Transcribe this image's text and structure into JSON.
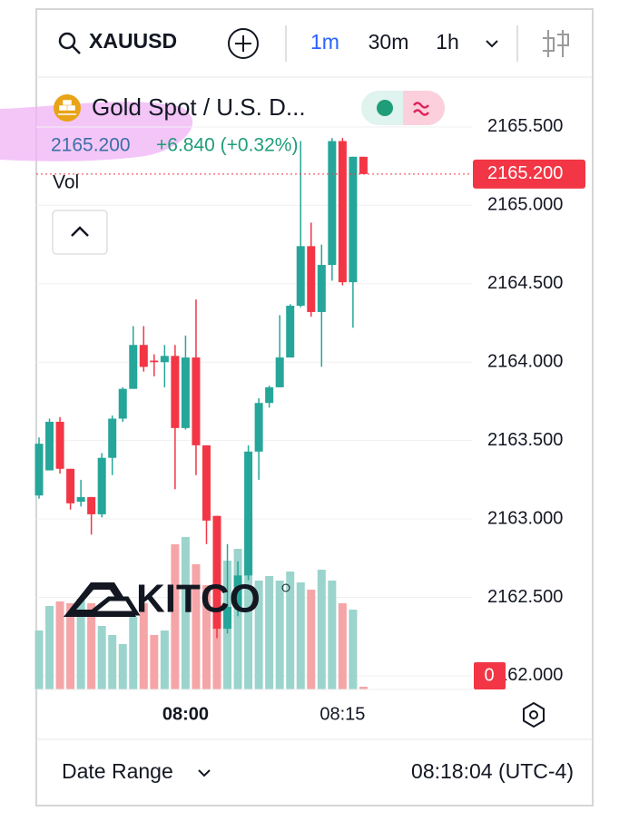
{
  "toolbar": {
    "symbol": "XAUUSD",
    "intervals": [
      "1m",
      "30m",
      "1h"
    ],
    "active_interval": 0
  },
  "chart_data": {
    "type": "candlestick",
    "title": "Gold Spot / U.S. D...",
    "price": "2165.200",
    "change": "+6.840 (+0.32%)",
    "volume_label": "Vol",
    "watermark": "KITCO",
    "categories": [
      null,
      null,
      null,
      null,
      null,
      null,
      null,
      null,
      null,
      null,
      null,
      null,
      null,
      null,
      "08:00",
      null,
      null,
      null,
      null,
      null,
      null,
      null,
      null,
      null,
      null,
      null,
      null,
      null,
      null,
      "08:15",
      null,
      null
    ],
    "open": [
      2163.15,
      2163.31,
      2163.62,
      2163.32,
      2163.11,
      2163.14,
      2163.03,
      2163.39,
      2163.64,
      2163.83,
      2164.11,
      2164.01,
      2164.0,
      2164.04,
      2163.58,
      2164.03,
      2163.47,
      2163.02,
      2162.3,
      2162.44,
      2162.64,
      2163.43,
      2163.74,
      2163.84,
      2164.03,
      2164.36,
      2164.74,
      2164.32,
      2164.62,
      2165.41,
      2164.51,
      2165.31
    ],
    "high": [
      2163.52,
      2163.64,
      2163.65,
      2163.32,
      2163.25,
      2163.14,
      2163.42,
      2163.66,
      2163.84,
      2164.23,
      2164.23,
      2164.05,
      2164.11,
      2164.11,
      2164.17,
      2164.4,
      2163.47,
      2163.02,
      2162.84,
      2162.73,
      2163.47,
      2163.77,
      2163.85,
      2164.3,
      2164.37,
      2165.41,
      2164.89,
      2164.75,
      2165.43,
      2165.43,
      2165.31,
      2165.31
    ],
    "low": [
      2163.13,
      2163.31,
      2163.29,
      2163.06,
      2163.08,
      2162.9,
      2163.01,
      2163.28,
      2163.62,
      2163.83,
      2163.94,
      2163.91,
      2163.84,
      2163.19,
      2163.57,
      2163.28,
      2162.84,
      2162.24,
      2162.27,
      2162.38,
      2162.61,
      2163.25,
      2163.71,
      2163.84,
      2164.03,
      2164.35,
      2164.29,
      2163.97,
      2164.52,
      2164.49,
      2164.22,
      2165.21
    ],
    "close": [
      2163.48,
      2163.62,
      2163.32,
      2163.1,
      2163.14,
      2163.03,
      2163.39,
      2163.64,
      2163.83,
      2164.11,
      2163.97,
      2164.0,
      2164.04,
      2163.58,
      2164.03,
      2163.47,
      2162.99,
      2162.3,
      2162.44,
      2162.64,
      2163.43,
      2163.74,
      2163.84,
      2164.03,
      2164.36,
      2164.74,
      2164.32,
      2164.62,
      2165.41,
      2164.51,
      2165.31,
      2165.2
    ],
    "volume": [
      65,
      92,
      97,
      95,
      100,
      95,
      70,
      60,
      50,
      80,
      95,
      60,
      65,
      160,
      168,
      138,
      115,
      100,
      142,
      155,
      190,
      120,
      125,
      120,
      130,
      118,
      110,
      132,
      120,
      95,
      88,
      3
    ],
    "up_color": "#26a69a",
    "down_color": "#f23645",
    "up_volume_color": "#9bd4cc",
    "down_volume_color": "#f5a5a7",
    "ylim": [
      2161.913,
      2165.818
    ],
    "yticks": [
      {
        "value": 2165.5,
        "label": "2165.500"
      },
      {
        "value": 2165,
        "label": "2165.000"
      },
      {
        "value": 2164.5,
        "label": "2164.500"
      },
      {
        "value": 2164,
        "label": "2164.000"
      },
      {
        "value": 2163.5,
        "label": "2163.500"
      },
      {
        "value": 2163,
        "label": "2163.000"
      },
      {
        "value": 2162.5,
        "label": "2162.500"
      },
      {
        "value": 2162,
        "label": "2162.000"
      }
    ],
    "last_price": {
      "value": 2165.2,
      "label": "2165.200"
    },
    "countdown": "0",
    "grid": true
  },
  "footer": {
    "date_range": "Date Range",
    "time": "08:18:04 (UTC-4)"
  }
}
